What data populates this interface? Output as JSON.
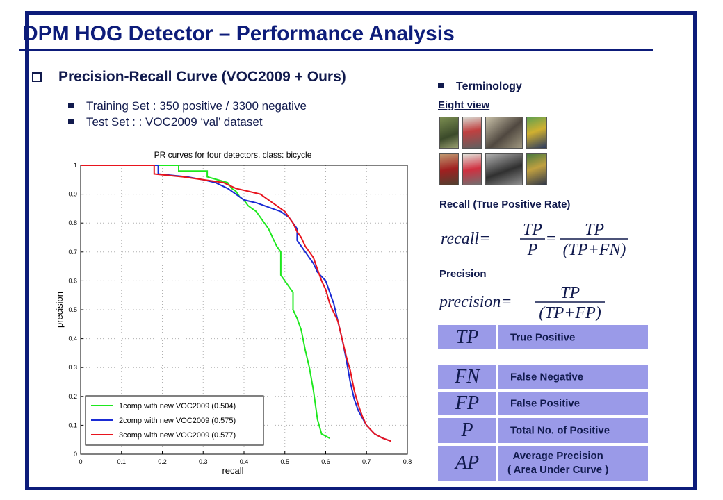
{
  "slide": {
    "title": "DPM HOG Detector – Performance Analysis",
    "section": "Precision-Recall Curve (VOC2009 + Ours)",
    "bullets": [
      "Training Set : 350 positive / 3300 negative",
      "Test Set : : VOC2009 ‘val’ dataset"
    ]
  },
  "terminology": {
    "heading": "Terminology",
    "eight_view": "Eight view",
    "recall_label": "Recall (True Positive Rate)",
    "precision_label": "Precision",
    "formula_recall": {
      "name": "recall=",
      "tp": "TP",
      "p": "P",
      "den": "(TP+FN)"
    },
    "formula_precision": {
      "name": "precision=",
      "tp": "TP",
      "den": "(TP+FP)"
    },
    "table": [
      {
        "sym": "TP",
        "desc": "True Positive"
      },
      {
        "sym": "FN",
        "desc": "False Negative"
      },
      {
        "sym": "FP",
        "desc": "False Positive"
      },
      {
        "sym": "P",
        "desc": "Total No. of Positive"
      },
      {
        "sym": "AP",
        "desc_line1": "Average Precision",
        "desc_line2": "( Area Under Curve )"
      }
    ]
  },
  "colors": {
    "green": "#1ee81e",
    "blue": "#1a2bd4",
    "red": "#e8141e",
    "navy": "#0d1c7a"
  },
  "chart_data": {
    "type": "line",
    "title": "PR curves for four detectors, class: bicycle",
    "xlabel": "recall",
    "ylabel": "precision",
    "xlim": [
      0,
      0.8
    ],
    "ylim": [
      0,
      1
    ],
    "xticks": [
      "0",
      "0.1",
      "0.2",
      "0.3",
      "0.4",
      "0.5",
      "0.6",
      "0.7",
      "0.8"
    ],
    "yticks": [
      "0",
      "0.1",
      "0.2",
      "0.3",
      "0.4",
      "0.5",
      "0.6",
      "0.7",
      "0.8",
      "0.9",
      "1"
    ],
    "legend_position": "bottom-left",
    "series": [
      {
        "name": "1comp with new VOC2009 (0.504)",
        "color": "#1ee81e",
        "x": [
          0,
          0.24,
          0.24,
          0.31,
          0.31,
          0.36,
          0.37,
          0.38,
          0.39,
          0.4,
          0.41,
          0.43,
          0.44,
          0.45,
          0.46,
          0.47,
          0.48,
          0.49,
          0.49,
          0.5,
          0.51,
          0.52,
          0.52,
          0.53,
          0.54,
          0.55,
          0.56,
          0.57,
          0.58,
          0.59,
          0.61
        ],
        "y": [
          1,
          1,
          0.98,
          0.98,
          0.96,
          0.94,
          0.92,
          0.91,
          0.89,
          0.88,
          0.86,
          0.84,
          0.82,
          0.8,
          0.78,
          0.75,
          0.72,
          0.7,
          0.62,
          0.6,
          0.58,
          0.56,
          0.5,
          0.47,
          0.43,
          0.36,
          0.3,
          0.22,
          0.12,
          0.07,
          0.055
        ]
      },
      {
        "name": "2comp with new VOC2009 (0.575)",
        "color": "#1a2bd4",
        "x": [
          0,
          0.19,
          0.19,
          0.26,
          0.3,
          0.33,
          0.36,
          0.38,
          0.4,
          0.43,
          0.45,
          0.47,
          0.49,
          0.51,
          0.52,
          0.53,
          0.53,
          0.54,
          0.55,
          0.56,
          0.57,
          0.58,
          0.6,
          0.61,
          0.62,
          0.63,
          0.64,
          0.65,
          0.66,
          0.67,
          0.68,
          0.7,
          0.72,
          0.74,
          0.76
        ],
        "y": [
          1,
          1,
          0.97,
          0.96,
          0.95,
          0.94,
          0.92,
          0.9,
          0.88,
          0.87,
          0.86,
          0.85,
          0.84,
          0.82,
          0.8,
          0.78,
          0.74,
          0.72,
          0.7,
          0.68,
          0.66,
          0.63,
          0.6,
          0.56,
          0.52,
          0.46,
          0.4,
          0.33,
          0.25,
          0.19,
          0.15,
          0.1,
          0.07,
          0.055,
          0.045
        ]
      },
      {
        "name": "3comp with new VOC2009 (0.577)",
        "color": "#e8141e",
        "x": [
          0,
          0.18,
          0.18,
          0.25,
          0.3,
          0.35,
          0.38,
          0.41,
          0.44,
          0.46,
          0.48,
          0.5,
          0.51,
          0.52,
          0.53,
          0.54,
          0.55,
          0.56,
          0.57,
          0.58,
          0.59,
          0.6,
          0.61,
          0.62,
          0.63,
          0.64,
          0.65,
          0.66,
          0.67,
          0.68,
          0.69,
          0.7,
          0.72,
          0.74,
          0.76
        ],
        "y": [
          1,
          1,
          0.97,
          0.96,
          0.95,
          0.94,
          0.92,
          0.91,
          0.9,
          0.88,
          0.86,
          0.84,
          0.82,
          0.8,
          0.77,
          0.75,
          0.72,
          0.7,
          0.68,
          0.64,
          0.6,
          0.57,
          0.52,
          0.49,
          0.46,
          0.4,
          0.34,
          0.29,
          0.22,
          0.17,
          0.13,
          0.1,
          0.07,
          0.055,
          0.045
        ]
      }
    ]
  }
}
